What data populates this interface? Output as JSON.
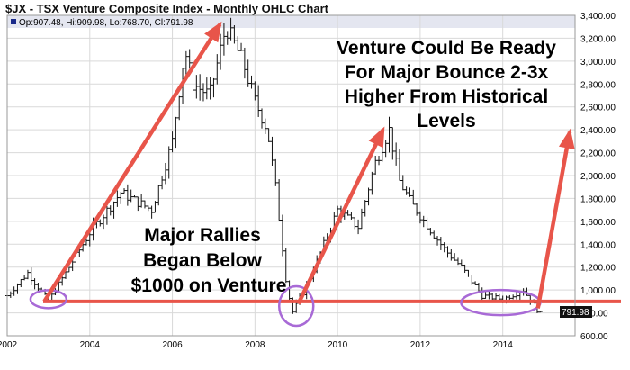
{
  "chart_data": {
    "type": "ohlc",
    "title": "$JX - TSX Venture Composite Index - Monthly OHLC Chart",
    "ohlc_readout": "Op:907.48, Hi:909.98, Lo:768.70, Cl:791.98",
    "last_price_label": "791.98",
    "xlabel": "",
    "ylabel": "",
    "xlim": [
      2002.0,
      2015.75
    ],
    "ylim": [
      600,
      3400
    ],
    "x_ticks": [
      2002,
      2004,
      2006,
      2008,
      2010,
      2012,
      2014
    ],
    "x_tick_labels": [
      "2002",
      "2004",
      "2006",
      "2008",
      "2010",
      "2012",
      "2014"
    ],
    "y_ticks": [
      600,
      800,
      1000,
      1200,
      1400,
      1600,
      1800,
      2000,
      2200,
      2400,
      2600,
      2800,
      3000,
      3200,
      3400
    ],
    "y_tick_labels": [
      "600.00",
      "800.00",
      "1,000.00",
      "1,200.00",
      "1,400.00",
      "1,600.00",
      "1,800.00",
      "2,000.00",
      "2,200.00",
      "2,400.00",
      "2,600.00",
      "2,800.00",
      "3,000.00",
      "3,200.00",
      "3,400.00"
    ],
    "grid": true,
    "key_closes": {
      "x": [
        2002.0,
        2002.5,
        2003.0,
        2004.0,
        2004.75,
        2005.5,
        2006.0,
        2006.3,
        2006.5,
        2006.9,
        2007.3,
        2007.7,
        2008.0,
        2008.3,
        2008.5,
        2008.75,
        2008.9,
        2009.2,
        2009.5,
        2010.0,
        2010.5,
        2010.9,
        2011.25,
        2011.5,
        2011.8,
        2012.2,
        2012.6,
        2013.0,
        2013.5,
        2014.0,
        2014.5,
        2014.9
      ],
      "y": [
        950,
        1150,
        900,
        1500,
        1850,
        1700,
        2300,
        3100,
        2800,
        2700,
        3300,
        3000,
        2650,
        2400,
        1900,
        1100,
        800,
        1000,
        1250,
        1700,
        1550,
        2100,
        2400,
        1950,
        1750,
        1550,
        1350,
        1200,
        950,
        920,
        1000,
        792
      ]
    },
    "support_line": 900,
    "colors": {
      "price_bars": "#111111",
      "arrows": "#e8554a",
      "support_line": "#e8554a",
      "ellipses": "#a86ad6",
      "grid": "#d9d9d9",
      "readout_band": "#e4e6f0"
    },
    "annotations": {
      "bottom_left": [
        "Major Rallies",
        "Began Below",
        "$1000 on Venture"
      ],
      "top_right": [
        "Venture Could Be Ready",
        "For Major Bounce 2-3x",
        "Higher From Historical",
        "Levels"
      ]
    }
  }
}
